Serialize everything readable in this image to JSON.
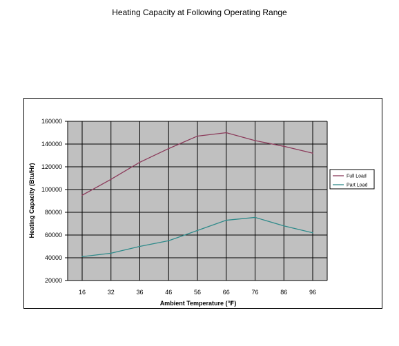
{
  "page_title": "Heating Capacity at Following Operating Range",
  "chart_data": {
    "type": "line",
    "title": "Heating Capacity at Following Operating Range",
    "xlabel": "Ambient Temperature (℉)",
    "ylabel": "Heating Capacity (Btu/Hr)",
    "categories": [
      "16",
      "32",
      "36",
      "46",
      "56",
      "66",
      "76",
      "86",
      "96"
    ],
    "ylim": [
      20000,
      160000
    ],
    "yticks": [
      "20000",
      "40000",
      "60000",
      "80000",
      "100000",
      "120000",
      "140000",
      "160000"
    ],
    "series": [
      {
        "name": "Full Load",
        "color": "#8b3a5a",
        "values": [
          95000,
          109000,
          124000,
          136000,
          147000,
          150000,
          143000,
          138000,
          132000
        ]
      },
      {
        "name": "Part Load",
        "color": "#2e8a8a",
        "values": [
          41000,
          44000,
          50000,
          55000,
          64000,
          73000,
          75500,
          68000,
          62000
        ]
      }
    ],
    "grid": true,
    "plot_background": "#c0c0c0",
    "legend_position": "right"
  }
}
